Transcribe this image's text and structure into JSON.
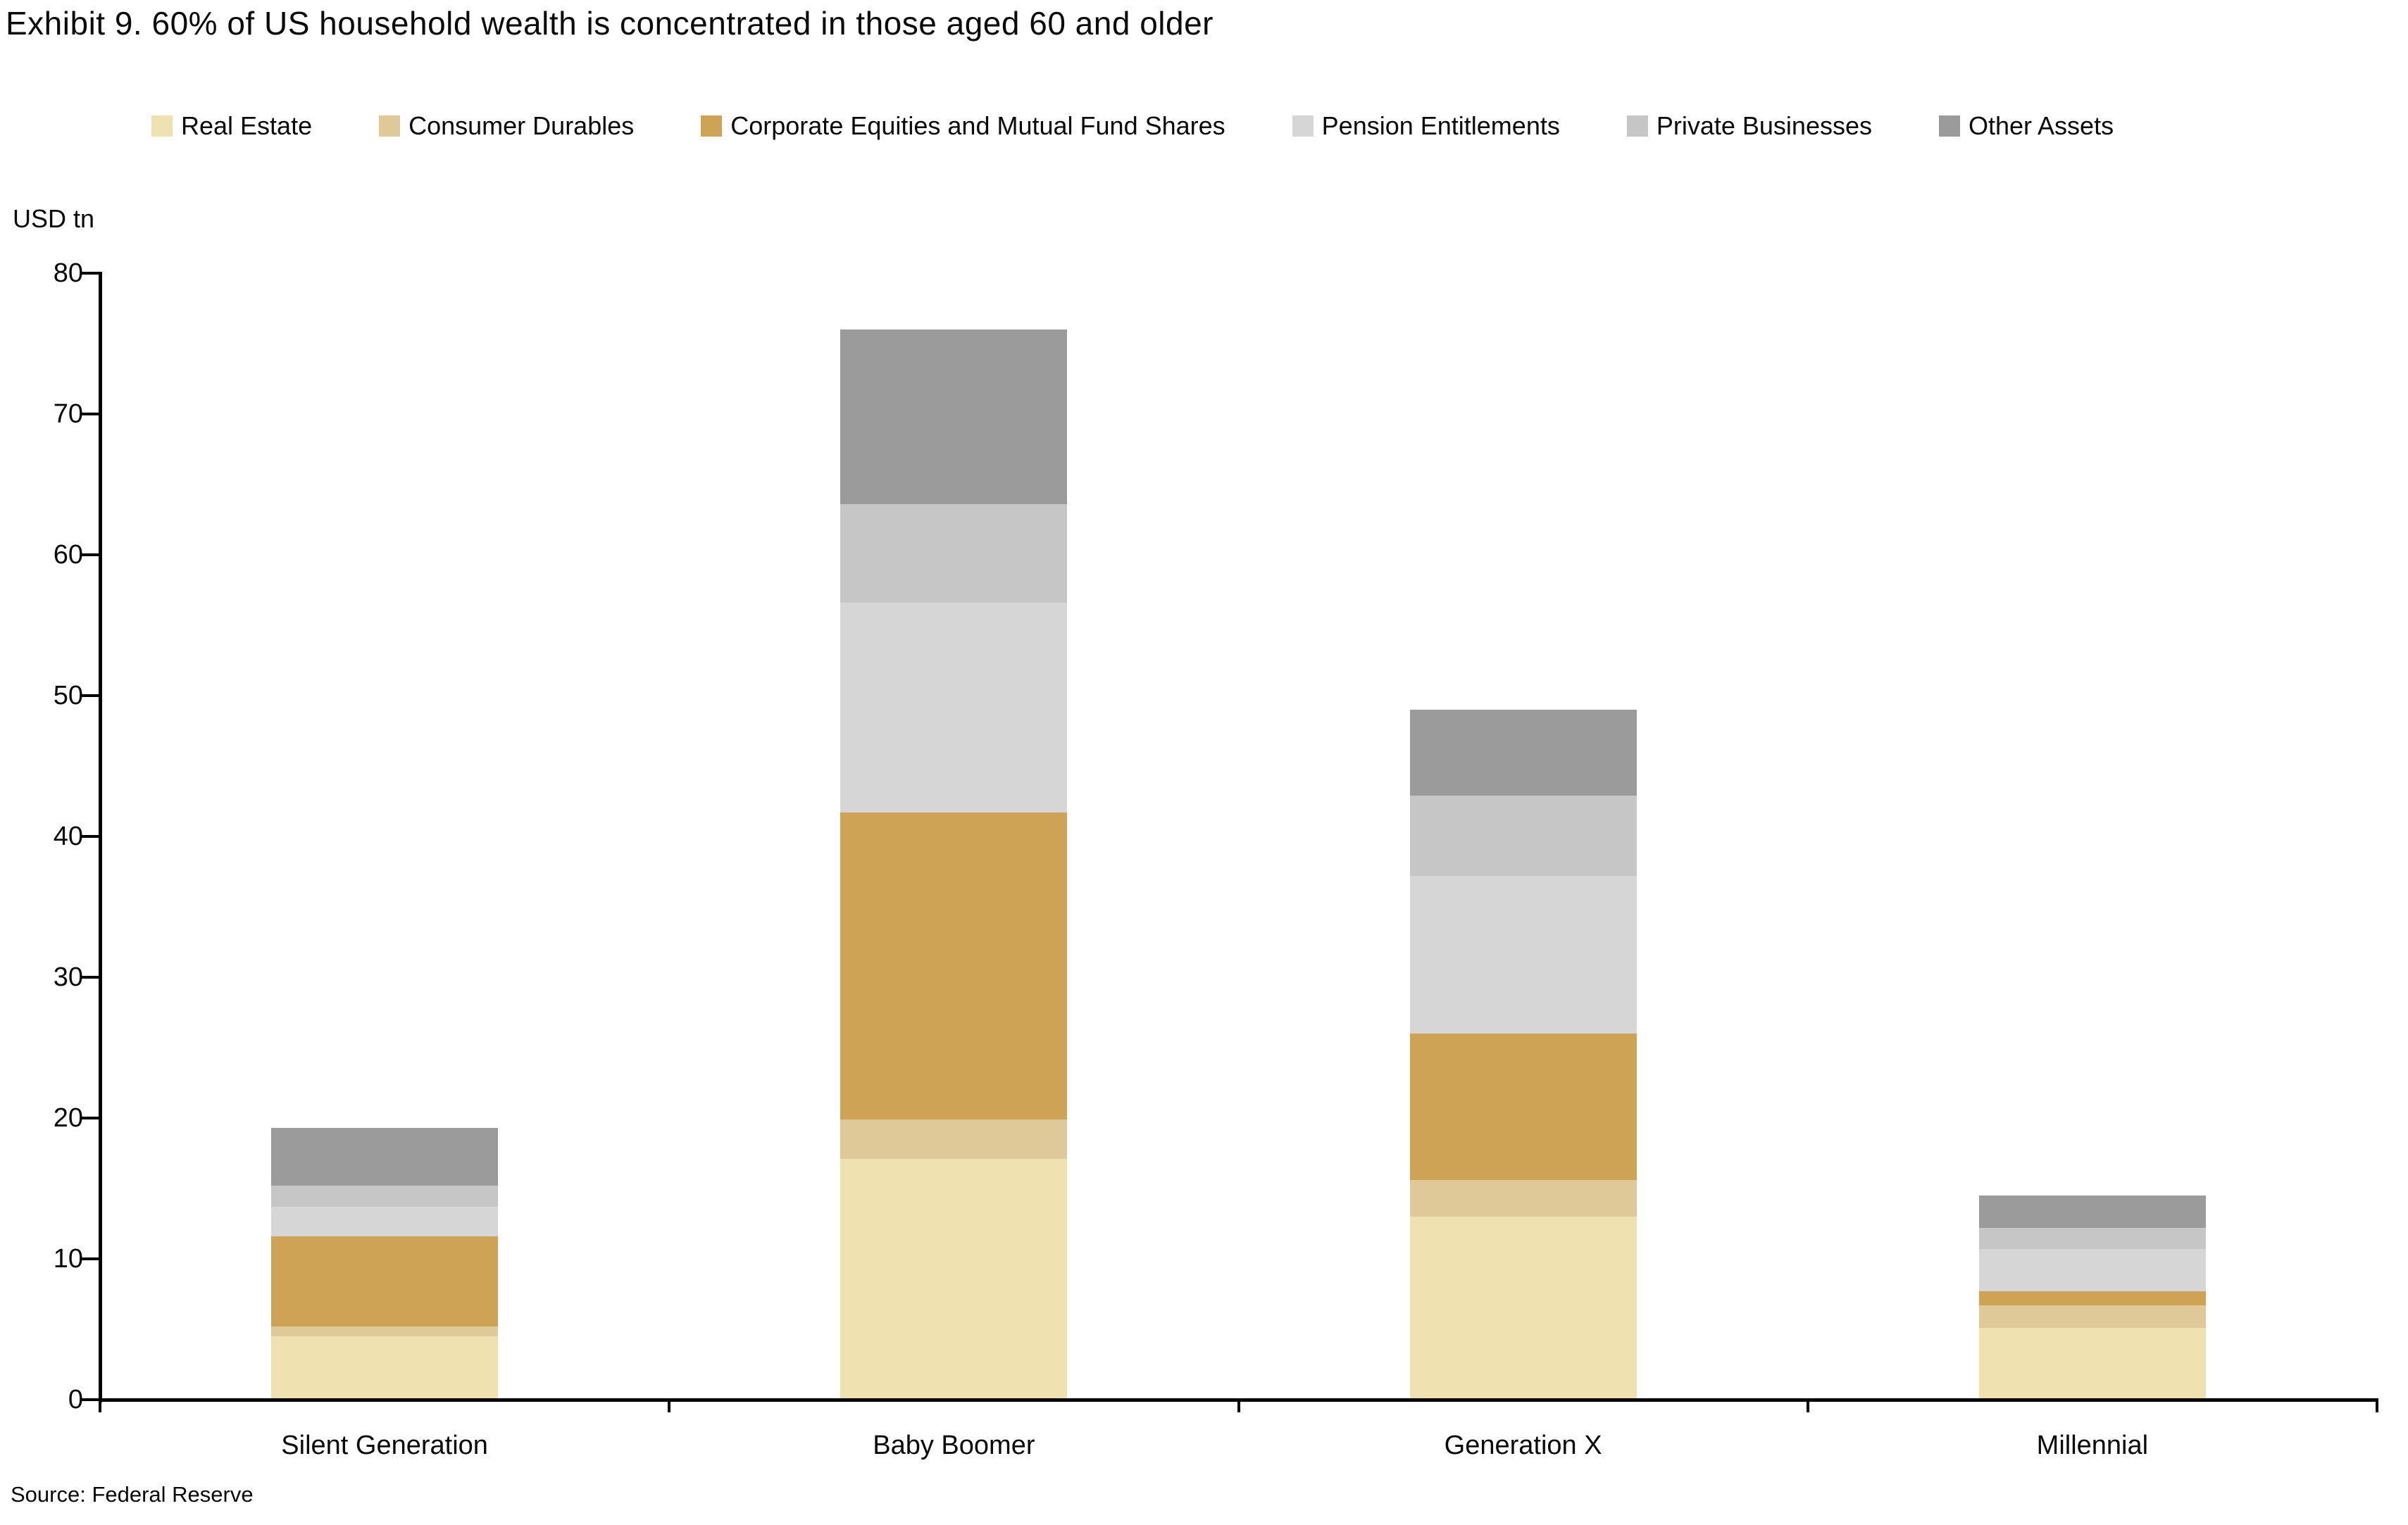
{
  "title": "Exhibit 9. 60% of US household wealth is concentrated in those aged 60 and older",
  "source": "Source: Federal Reserve",
  "chart_data": {
    "type": "bar",
    "stacked": true,
    "title": "Exhibit 9. 60% of US household wealth is concentrated in those aged 60 and older",
    "ylabel": "USD tn",
    "xlabel": "",
    "ylim": [
      0,
      80
    ],
    "ytick_step": 10,
    "ytick_labels": [
      "0",
      "10",
      "20",
      "30",
      "40",
      "50",
      "60",
      "70",
      "80"
    ],
    "grid": false,
    "legend_position": "top",
    "categories": [
      "Silent Generation",
      "Baby Boomer",
      "Generation X",
      "Millennial"
    ],
    "series": [
      {
        "name": "Real Estate",
        "color": "#f0e2b0",
        "values": [
          4.5,
          17.1,
          13.0,
          5.1
        ]
      },
      {
        "name": "Consumer Durables",
        "color": "#e0c998",
        "values": [
          0.7,
          2.8,
          2.6,
          1.6
        ]
      },
      {
        "name": "Corporate Equities and Mutual Fund Shares",
        "color": "#cfa355",
        "values": [
          6.4,
          21.8,
          10.4,
          1.0
        ]
      },
      {
        "name": "Pension Entitlements",
        "color": "#d6d6d6",
        "values": [
          2.1,
          14.9,
          11.2,
          3.0
        ]
      },
      {
        "name": "Private Businesses",
        "color": "#c6c6c6",
        "values": [
          1.5,
          7.0,
          5.7,
          1.5
        ]
      },
      {
        "name": "Other Assets",
        "color": "#9b9b9b",
        "values": [
          4.1,
          12.4,
          6.1,
          2.3
        ]
      }
    ],
    "totals": [
      19.3,
      76.0,
      49.0,
      14.5
    ]
  }
}
